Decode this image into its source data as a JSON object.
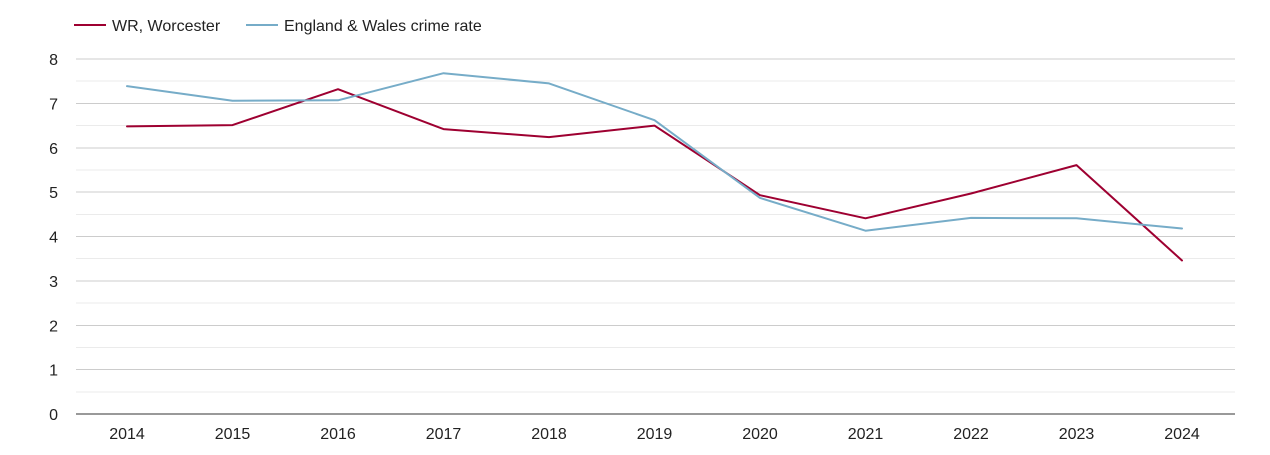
{
  "chart_data": {
    "type": "line",
    "title": "",
    "xlabel": "",
    "ylabel": "",
    "x": [
      "2014",
      "2015",
      "2016",
      "2017",
      "2018",
      "2019",
      "2020",
      "2021",
      "2022",
      "2023",
      "2024"
    ],
    "ylim": [
      0,
      8
    ],
    "yticks": [
      0,
      1,
      2,
      3,
      4,
      5,
      6,
      7,
      8
    ],
    "grid": true,
    "legend_position": "top-left",
    "series": [
      {
        "name": "WR, Worcester",
        "color": "#9e0031",
        "values": [
          6.48,
          6.51,
          7.32,
          6.42,
          6.24,
          6.5,
          4.93,
          4.41,
          4.97,
          5.61,
          3.46
        ]
      },
      {
        "name": "England & Wales crime rate",
        "color": "#76acc8",
        "values": [
          7.39,
          7.06,
          7.07,
          7.68,
          7.45,
          6.62,
          4.87,
          4.13,
          4.42,
          4.41,
          4.18
        ]
      }
    ]
  }
}
